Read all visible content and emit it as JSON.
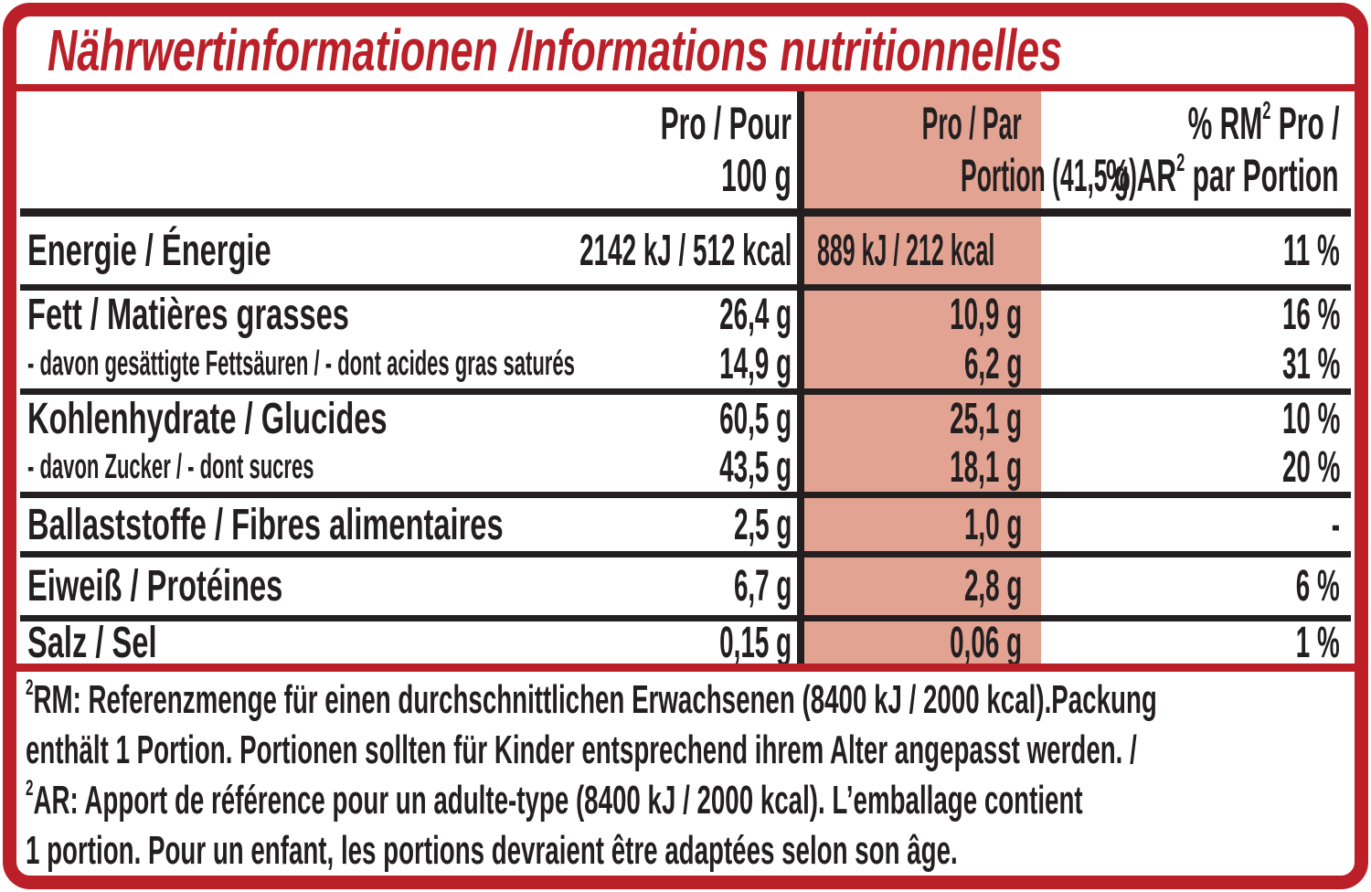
{
  "title": "Nährwertinformationen /Informations nutritionnelles",
  "colors": {
    "red": "#bb2028",
    "pink": "#e2a392",
    "black": "#231f20"
  },
  "table": {
    "header": {
      "per100": {
        "line1": "Pro / Pour",
        "line2": "100 g"
      },
      "portion": {
        "line1": "Pro / Par",
        "line2": "Portion (41,5 g)"
      },
      "rm": {
        "line1_pre": "% RM",
        "line1_sup": "2",
        "line1_post": " Pro /",
        "line2_pre": "% AR",
        "line2_sup": "2",
        "line2_post": " par Portion"
      }
    },
    "rows": [
      {
        "label": "Energie / Énergie",
        "per100": "2142 kJ / 512 kcal",
        "portion": "889 kJ / 212 kcal",
        "rm": "11 %"
      },
      {
        "label": "Fett / Matières grasses",
        "per100": "26,4 g",
        "portion": "10,9 g",
        "rm": "16 %"
      },
      {
        "label": "- davon gesättigte Fettsäuren / - dont acides gras saturés",
        "per100": "14,9 g",
        "portion": "6,2 g",
        "rm": "31 %"
      },
      {
        "label": "Kohlenhydrate / Glucides",
        "per100": "60,5 g",
        "portion": "25,1 g",
        "rm": "10 %"
      },
      {
        "label": "- davon Zucker / - dont sucres",
        "per100": "43,5 g",
        "portion": "18,1 g",
        "rm": "20 %"
      },
      {
        "label": "Ballaststoffe / Fibres alimentaires",
        "per100": "2,5 g",
        "portion": "1,0 g",
        "rm": "-"
      },
      {
        "label": "Eiweiß / Protéines",
        "per100": "6,7 g",
        "portion": "2,8 g",
        "rm": "6 %"
      },
      {
        "label": "Salz / Sel",
        "per100": "0,15 g",
        "portion": "0,06 g",
        "rm": "1 %"
      }
    ]
  },
  "footnotes": {
    "line1_sup": "2",
    "line1": "RM: Referenzmenge für einen durchschnittlichen Erwachsenen (8400 kJ / 2000 kcal).Packung",
    "line2": "enthält 1 Portion. Portionen sollten für Kinder entsprechend ihrem Alter angepasst werden. /",
    "line3_sup": "2",
    "line3": "AR: Apport de référence pour un adulte-type (8400 kJ / 2000 kcal). L’emballage contient",
    "line4": "1 portion. Pour un enfant, les portions devraient être adaptées selon son âge."
  }
}
